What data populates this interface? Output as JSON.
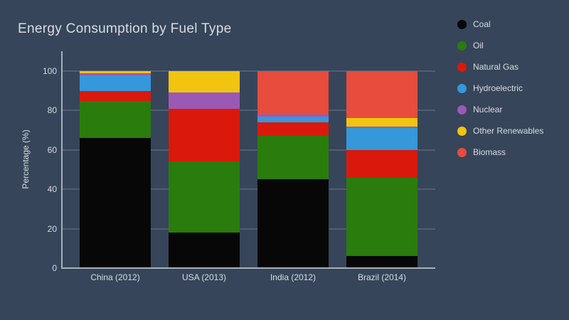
{
  "title": "Energy Consumption by Fuel Type",
  "chart_data": {
    "type": "bar",
    "stacked": true,
    "title": "Energy Consumption by Fuel Type",
    "xlabel": "",
    "ylabel": "Percentage (%)",
    "ylim": [
      0,
      100
    ],
    "yticks": [
      0,
      20,
      40,
      60,
      80,
      100
    ],
    "grid": true,
    "legend_position": "right-top-outside",
    "categories": [
      "China (2012)",
      "USA (2013)",
      "India (2012)",
      "Brazil (2014)"
    ],
    "series": [
      {
        "name": "Coal",
        "color": "#070707",
        "values": [
          66,
          18,
          45,
          6
        ]
      },
      {
        "name": "Oil",
        "color": "#2a7c0c",
        "values": [
          19,
          36,
          22,
          40
        ]
      },
      {
        "name": "Natural Gas",
        "color": "#da190c",
        "values": [
          5,
          27,
          7,
          14
        ]
      },
      {
        "name": "Hydroelectric",
        "color": "#3498db",
        "values": [
          8,
          0,
          3,
          11
        ]
      },
      {
        "name": "Nuclear",
        "color": "#9b59b6",
        "values": [
          1,
          8,
          1,
          1
        ]
      },
      {
        "name": "Other Renewables",
        "color": "#f1c40f",
        "values": [
          1,
          11,
          0,
          4
        ]
      },
      {
        "name": "Biomass",
        "color": "#e74c3c",
        "values": [
          0,
          0,
          22,
          24
        ]
      }
    ]
  },
  "colors": {
    "background": "#36455a",
    "gridline": "#4f5e72",
    "axis": "#a7b0ba",
    "text": "#d9dde1"
  }
}
